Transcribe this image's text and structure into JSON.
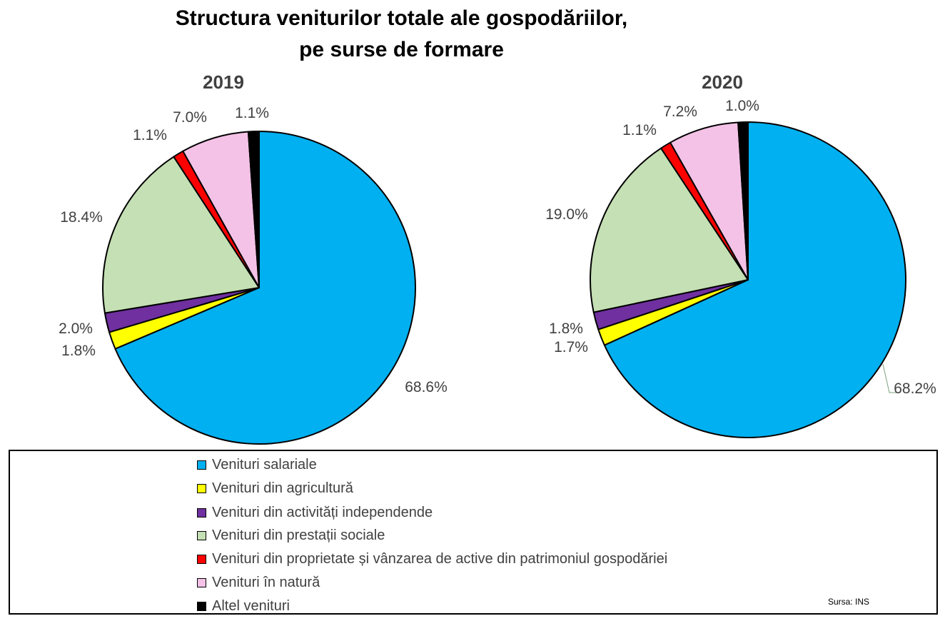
{
  "title_line1": "Structura veniturilor totale ale gospodăriilor,",
  "title_line2": "pe surse de formare",
  "source": "Sursa: INS",
  "chart_data": [
    {
      "type": "pie",
      "title": "2019",
      "categories": [
        "Venituri salariale",
        "Venituri din agricultură",
        "Venituri din activități independende",
        "Venituri din prestații sociale",
        "Venituri din proprietate și vânzarea de active din patrimoniul gospodăriei",
        "Venituri în natură",
        "Altel venituri"
      ],
      "values": [
        68.6,
        1.8,
        2.0,
        18.4,
        1.1,
        7.0,
        1.1
      ],
      "labels": [
        "68.6%",
        "1.8%",
        "2.0%",
        "18.4%",
        "1.1%",
        "7.0%",
        "1.1%"
      ],
      "colors": [
        "#00B0F0",
        "#FFFF00",
        "#7030A0",
        "#C5E0B4",
        "#FF0000",
        "#F4C2E6",
        "#000000"
      ]
    },
    {
      "type": "pie",
      "title": "2020",
      "categories": [
        "Venituri salariale",
        "Venituri din agricultură",
        "Venituri din activități independende",
        "Venituri din prestații sociale",
        "Venituri din proprietate și vânzarea de active din patrimoniul gospodăriei",
        "Venituri în natură",
        "Altel venituri"
      ],
      "values": [
        68.2,
        1.7,
        1.8,
        19.0,
        1.1,
        7.2,
        1.0
      ],
      "labels": [
        "68.2%",
        "1.7%",
        "1.8%",
        "19.0%",
        "1.1%",
        "7.2%",
        "1.0%"
      ],
      "colors": [
        "#00B0F0",
        "#FFFF00",
        "#7030A0",
        "#C5E0B4",
        "#FF0000",
        "#F4C2E6",
        "#000000"
      ]
    }
  ],
  "legend": [
    {
      "label": "Venituri salariale",
      "color": "#00B0F0"
    },
    {
      "label": "Venituri din agricultură",
      "color": "#FFFF00"
    },
    {
      "label": "Venituri din activități independende",
      "color": "#7030A0"
    },
    {
      "label": "Venituri din prestații sociale",
      "color": "#C5E0B4"
    },
    {
      "label": "Venituri din proprietate și vânzarea de active din patrimoniul gospodăriei",
      "color": "#FF0000"
    },
    {
      "label": "Venituri în natură",
      "color": "#F4C2E6"
    },
    {
      "label": "Altel venituri",
      "color": "#000000"
    }
  ]
}
